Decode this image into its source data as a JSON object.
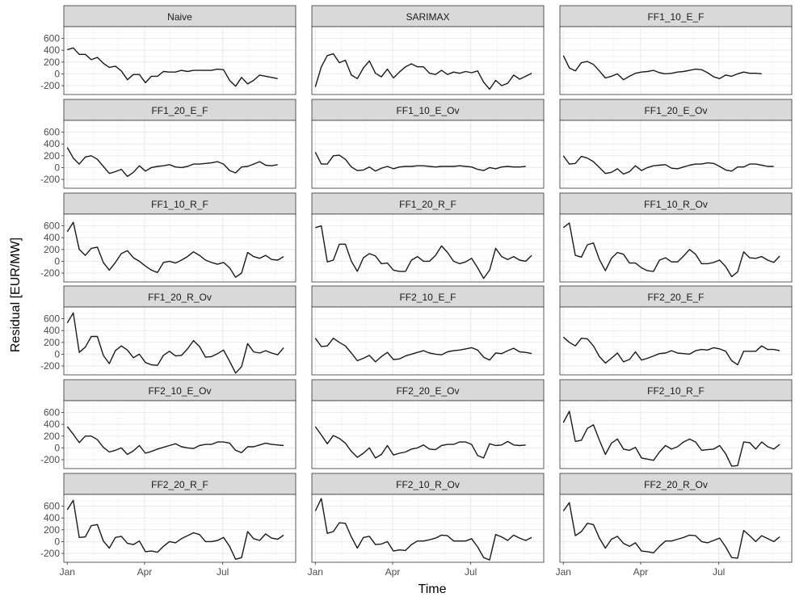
{
  "chart_data": {
    "type": "line",
    "layout": "facet-grid",
    "xlabel": "Time",
    "ylabel": "Residual [EUR/MW]",
    "x_ticks": [
      "Jan",
      "Apr",
      "Jul"
    ],
    "y_ticks": [
      "-200",
      "0",
      "200",
      "400",
      "600"
    ],
    "ylim": [
      -350,
      800
    ],
    "colors": {
      "line": "#1a1a1a",
      "panel_bg": "#ffffff",
      "grid": "#ebebeb",
      "strip_bg": "#d9d9d9",
      "border": "#333333"
    },
    "grid": true,
    "week_start_dates": [
      "2019-01-01",
      "2019-01-08",
      "2019-01-15",
      "2019-01-22",
      "2019-01-29",
      "2019-02-05",
      "2019-02-12",
      "2019-02-19",
      "2019-02-26",
      "2019-03-05",
      "2019-03-12",
      "2019-03-19",
      "2019-03-26",
      "2019-04-02",
      "2019-04-09",
      "2019-04-16",
      "2019-04-23",
      "2019-04-30",
      "2019-05-07",
      "2019-05-14",
      "2019-05-21",
      "2019-05-28",
      "2019-06-04",
      "2019-06-11",
      "2019-06-18",
      "2019-06-25",
      "2019-07-02",
      "2019-07-09",
      "2019-07-16",
      "2019-07-23",
      "2019-07-30",
      "2019-08-06",
      "2019-08-13",
      "2019-08-20",
      "2019-08-27",
      "2019-09-03",
      "2019-09-10",
      "2019-09-17"
    ],
    "panels": [
      {
        "name": "Naive",
        "values": [
          410,
          440,
          330,
          330,
          240,
          280,
          180,
          110,
          130,
          50,
          -100,
          -10,
          -10,
          -150,
          -40,
          -40,
          40,
          30,
          30,
          60,
          40,
          60,
          60,
          60,
          60,
          80,
          70,
          -110,
          -210,
          -60,
          -170,
          -110,
          -20,
          -40,
          -60,
          -80
        ]
      },
      {
        "name": "SARIMAX",
        "values": [
          -220,
          120,
          310,
          340,
          190,
          230,
          -20,
          -80,
          100,
          220,
          10,
          -50,
          80,
          -70,
          30,
          120,
          170,
          120,
          120,
          10,
          -10,
          60,
          -10,
          30,
          10,
          40,
          20,
          50,
          -140,
          -260,
          -110,
          -200,
          -160,
          -20,
          -90,
          -40,
          10
        ]
      },
      {
        "name": "FF1_10_E_F",
        "values": [
          310,
          100,
          50,
          190,
          210,
          160,
          50,
          -70,
          -40,
          0,
          -100,
          -40,
          10,
          30,
          40,
          60,
          20,
          0,
          10,
          30,
          40,
          60,
          80,
          70,
          20,
          -50,
          -80,
          -20,
          -40,
          0,
          30,
          10,
          10,
          0
        ]
      },
      {
        "name": "FF1_20_E_F",
        "values": [
          340,
          160,
          60,
          180,
          200,
          140,
          20,
          -100,
          -70,
          -30,
          -150,
          -80,
          30,
          -60,
          0,
          20,
          30,
          50,
          10,
          0,
          20,
          60,
          60,
          70,
          80,
          100,
          60,
          -50,
          -90,
          10,
          20,
          60,
          100,
          40,
          30,
          50
        ]
      },
      {
        "name": "FF1_10_E_Ov",
        "values": [
          260,
          60,
          60,
          200,
          210,
          140,
          10,
          -50,
          -40,
          10,
          -60,
          -10,
          20,
          -20,
          10,
          20,
          20,
          30,
          30,
          20,
          10,
          20,
          20,
          20,
          30,
          20,
          10,
          -30,
          -50,
          0,
          -20,
          10,
          20,
          10,
          10,
          20
        ]
      },
      {
        "name": "FF1_20_E_Ov",
        "values": [
          200,
          60,
          70,
          190,
          160,
          100,
          0,
          -100,
          -80,
          -20,
          -110,
          -70,
          30,
          -50,
          0,
          30,
          40,
          50,
          -10,
          -20,
          10,
          40,
          60,
          60,
          80,
          70,
          20,
          -40,
          -60,
          10,
          10,
          60,
          60,
          40,
          20,
          20
        ]
      },
      {
        "name": "FF1_10_R_F",
        "values": [
          500,
          660,
          200,
          100,
          220,
          240,
          -20,
          -150,
          -20,
          130,
          180,
          60,
          0,
          -80,
          -150,
          -190,
          -20,
          0,
          -30,
          20,
          80,
          160,
          100,
          20,
          -20,
          -50,
          -20,
          -110,
          -270,
          -200,
          150,
          80,
          50,
          100,
          30,
          20,
          80
        ]
      },
      {
        "name": "FF1_20_R_F",
        "values": [
          570,
          600,
          -10,
          20,
          290,
          290,
          0,
          -170,
          60,
          130,
          90,
          -40,
          -30,
          -150,
          -170,
          -170,
          20,
          80,
          0,
          0,
          100,
          260,
          150,
          0,
          -40,
          -10,
          50,
          -110,
          -290,
          -150,
          220,
          80,
          30,
          80,
          20,
          0,
          100
        ]
      },
      {
        "name": "FF1_10_R_Ov",
        "values": [
          570,
          650,
          100,
          70,
          280,
          310,
          30,
          -160,
          50,
          150,
          120,
          -30,
          -30,
          -110,
          -160,
          -170,
          20,
          60,
          -10,
          -10,
          90,
          200,
          120,
          -40,
          -40,
          -20,
          20,
          -90,
          -260,
          -180,
          160,
          60,
          50,
          80,
          20,
          -20,
          90
        ]
      },
      {
        "name": "FF1_20_R_Ov",
        "values": [
          530,
          700,
          30,
          120,
          300,
          300,
          -20,
          -160,
          60,
          140,
          70,
          -60,
          0,
          -140,
          -180,
          -190,
          -20,
          50,
          -30,
          -20,
          90,
          230,
          130,
          -50,
          -40,
          10,
          70,
          -120,
          -320,
          -210,
          180,
          40,
          20,
          60,
          20,
          -10,
          110
        ]
      },
      {
        "name": "FF2_10_E_F",
        "values": [
          270,
          130,
          140,
          270,
          200,
          140,
          20,
          -110,
          -70,
          -20,
          -130,
          -40,
          30,
          -90,
          -80,
          -30,
          0,
          30,
          60,
          20,
          0,
          -10,
          40,
          60,
          70,
          90,
          110,
          70,
          -50,
          -100,
          20,
          10,
          60,
          100,
          40,
          30,
          10
        ]
      },
      {
        "name": "FF2_20_E_F",
        "values": [
          290,
          200,
          140,
          270,
          260,
          140,
          -40,
          -150,
          -70,
          20,
          -130,
          -90,
          40,
          -100,
          -70,
          -30,
          10,
          20,
          60,
          20,
          10,
          0,
          60,
          80,
          70,
          110,
          90,
          50,
          -110,
          -180,
          50,
          50,
          50,
          140,
          80,
          80,
          60
        ]
      },
      {
        "name": "FF2_10_E_Ov",
        "values": [
          360,
          230,
          90,
          200,
          200,
          140,
          10,
          -70,
          -40,
          0,
          -110,
          -50,
          40,
          -90,
          -60,
          -20,
          10,
          40,
          70,
          20,
          0,
          -10,
          40,
          60,
          60,
          100,
          100,
          80,
          -40,
          -80,
          20,
          20,
          50,
          80,
          60,
          50,
          40
        ]
      },
      {
        "name": "FF2_20_E_Ov",
        "values": [
          360,
          220,
          70,
          210,
          160,
          80,
          -60,
          -160,
          -90,
          0,
          -170,
          -110,
          40,
          -120,
          -90,
          -70,
          -20,
          0,
          50,
          -20,
          -30,
          40,
          60,
          60,
          100,
          100,
          60,
          -130,
          -170,
          70,
          40,
          50,
          110,
          50,
          40,
          50
        ]
      },
      {
        "name": "FF2_10_R_F",
        "values": [
          430,
          620,
          110,
          130,
          330,
          390,
          130,
          -110,
          80,
          150,
          -20,
          -40,
          10,
          -170,
          -190,
          -210,
          -70,
          40,
          -20,
          20,
          100,
          150,
          100,
          -40,
          -30,
          -20,
          40,
          -100,
          -310,
          -300,
          100,
          90,
          -20,
          100,
          20,
          -20,
          60
        ]
      },
      {
        "name": "FF2_20_R_F",
        "values": [
          540,
          700,
          70,
          80,
          270,
          290,
          10,
          -110,
          70,
          90,
          -30,
          -50,
          10,
          -170,
          -160,
          -180,
          -80,
          0,
          -20,
          50,
          100,
          150,
          120,
          0,
          0,
          20,
          70,
          -80,
          -300,
          -270,
          170,
          50,
          20,
          130,
          60,
          40,
          110
        ]
      },
      {
        "name": "FF2_10_R_Ov",
        "values": [
          520,
          730,
          140,
          170,
          320,
          310,
          80,
          -110,
          70,
          90,
          -50,
          -40,
          0,
          -160,
          -140,
          -150,
          -50,
          10,
          10,
          30,
          60,
          110,
          100,
          10,
          10,
          10,
          50,
          -90,
          -270,
          -310,
          120,
          80,
          20,
          110,
          60,
          20,
          70
        ]
      },
      {
        "name": "FF2_20_R_Ov",
        "values": [
          520,
          660,
          100,
          170,
          310,
          290,
          60,
          -110,
          40,
          90,
          -30,
          -80,
          -20,
          -160,
          -170,
          -190,
          -80,
          10,
          10,
          40,
          70,
          110,
          100,
          0,
          -20,
          20,
          60,
          -90,
          -270,
          -280,
          190,
          100,
          0,
          100,
          50,
          0,
          80
        ]
      }
    ]
  }
}
